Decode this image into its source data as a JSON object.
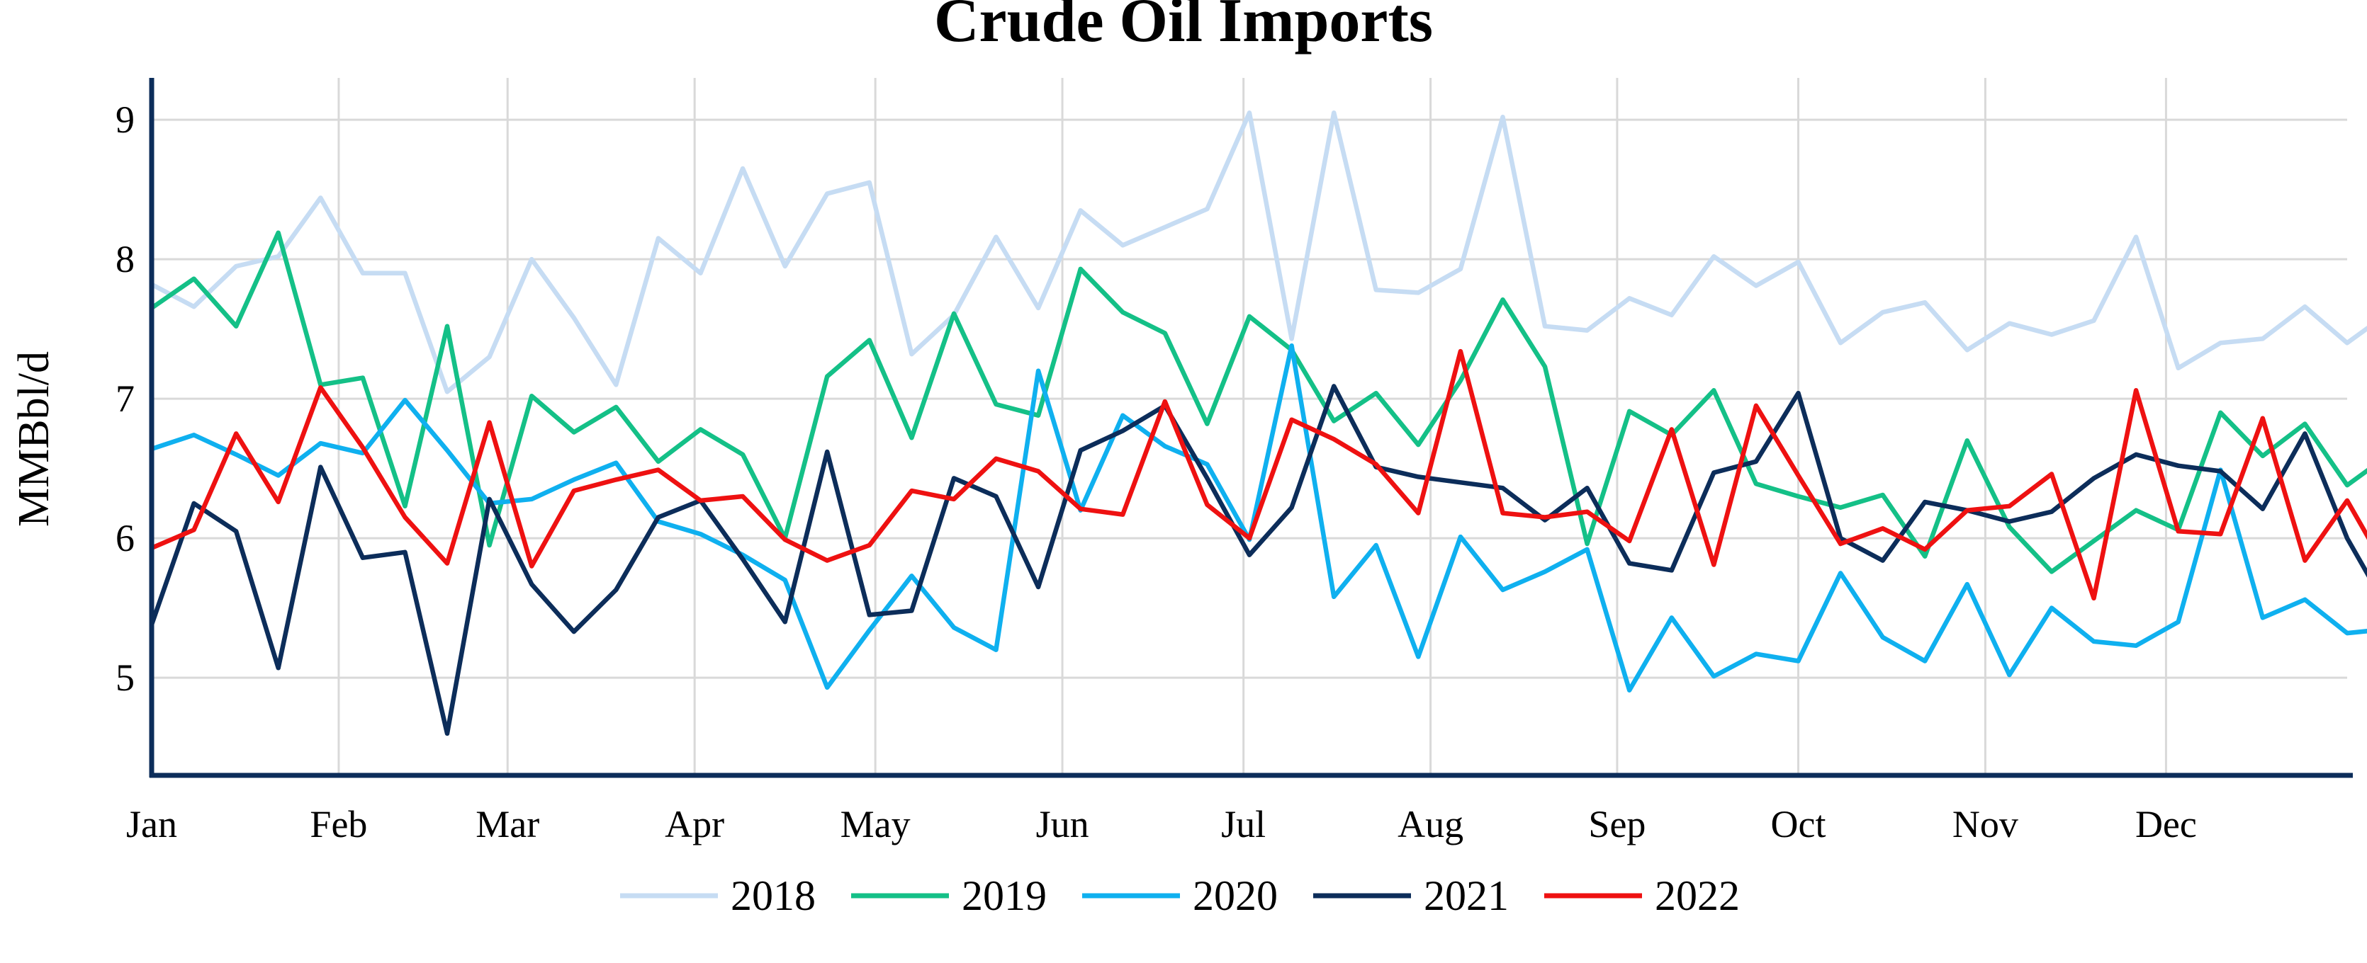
{
  "chart_data": {
    "type": "line",
    "title": "Crude Oil Imports",
    "xlabel": "",
    "ylabel": "MMBbl/d",
    "ylim": [
      4.3,
      9.3
    ],
    "yticks": [
      5,
      6,
      7,
      8,
      9
    ],
    "xlim": [
      1,
      53
    ],
    "x_tick_positions": [
      1,
      5.43,
      9.43,
      13.86,
      18.14,
      22.57,
      26.86,
      31.29,
      35.71,
      40,
      44.43,
      48.71
    ],
    "x_tick_labels": [
      "Jan",
      "Feb",
      "Mar",
      "Apr",
      "May",
      "Jun",
      "Jul",
      "Aug",
      "Sep",
      "Oct",
      "Nov",
      "Dec"
    ],
    "grid": true,
    "legend_position": "bottom-center",
    "colors": {
      "2018": "#c6dcf3",
      "2019": "#14c087",
      "2020": "#0fb0ef",
      "2021": "#0c2d5a",
      "2022": "#ee1111",
      "grid": "#d9d9d9",
      "axis": "#0c2d5a"
    },
    "series": [
      {
        "name": "2018",
        "values": [
          7.82,
          7.66,
          7.95,
          8.02,
          8.44,
          7.9,
          7.9,
          7.05,
          7.3,
          8.0,
          7.58,
          7.1,
          8.15,
          7.9,
          8.65,
          7.95,
          8.47,
          8.55,
          7.32,
          7.6,
          8.16,
          7.65,
          8.35,
          8.1,
          8.23,
          8.36,
          9.05,
          7.43,
          9.05,
          7.78,
          7.76,
          7.93,
          9.02,
          7.52,
          7.49,
          7.72,
          7.6,
          8.02,
          7.81,
          7.98,
          7.4,
          7.62,
          7.69,
          7.35,
          7.54,
          7.46,
          7.56,
          8.16,
          7.22,
          7.4,
          7.43,
          7.66,
          7.4,
          7.62
        ]
      },
      {
        "name": "2019",
        "values": [
          7.65,
          7.86,
          7.52,
          8.19,
          7.1,
          7.15,
          6.23,
          7.52,
          5.95,
          7.02,
          6.76,
          6.94,
          6.55,
          6.78,
          6.6,
          6.0,
          7.16,
          7.42,
          6.72,
          7.61,
          6.96,
          6.88,
          7.93,
          7.62,
          7.47,
          6.82,
          7.59,
          7.35,
          6.84,
          7.04,
          6.67,
          7.13,
          7.71,
          7.23,
          5.96,
          6.91,
          6.74,
          7.06,
          6.39,
          6.3,
          6.22,
          6.31,
          5.87,
          6.7,
          6.08,
          5.76,
          5.98,
          6.2,
          6.06,
          6.9,
          6.59,
          6.82,
          6.38,
          6.6
        ]
      },
      {
        "name": "2020",
        "values": [
          6.64,
          6.74,
          6.6,
          6.45,
          6.68,
          6.61,
          6.99,
          6.63,
          6.25,
          6.28,
          6.42,
          6.54,
          6.12,
          6.03,
          5.88,
          5.7,
          4.93,
          5.34,
          5.73,
          5.36,
          5.2,
          7.2,
          6.2,
          6.88,
          6.66,
          6.53,
          5.99,
          7.38,
          5.58,
          5.95,
          5.15,
          6.01,
          5.63,
          5.76,
          5.92,
          4.91,
          5.43,
          5.01,
          5.17,
          5.12,
          5.75,
          5.29,
          5.12,
          5.67,
          5.02,
          5.5,
          5.26,
          5.23,
          5.4,
          6.49,
          5.43,
          5.56,
          5.32,
          5.35
        ]
      },
      {
        "name": "2021",
        "values": [
          5.38,
          6.25,
          6.05,
          5.07,
          6.51,
          5.86,
          5.9,
          4.6,
          6.28,
          5.67,
          5.33,
          5.63,
          6.15,
          6.27,
          5.85,
          5.4,
          6.62,
          5.45,
          5.48,
          6.43,
          6.3,
          5.65,
          6.63,
          6.77,
          6.95,
          6.43,
          5.88,
          6.22,
          7.09,
          6.51,
          6.44,
          6.4,
          6.36,
          6.13,
          6.36,
          5.82,
          5.77,
          6.47,
          6.55,
          7.04,
          6.0,
          5.84,
          6.26,
          6.2,
          6.12,
          6.19,
          6.43,
          6.6,
          6.52,
          6.48,
          6.21,
          6.75,
          6.0,
          5.47
        ]
      },
      {
        "name": "2022",
        "values": [
          5.93,
          6.06,
          6.75,
          6.26,
          7.08,
          6.65,
          6.15,
          5.82,
          6.83,
          5.8,
          6.34,
          6.42,
          6.49,
          6.27,
          6.3,
          5.99,
          5.84,
          5.95,
          6.34,
          6.28,
          6.57,
          6.48,
          6.21,
          6.17,
          6.98,
          6.24,
          6.0,
          6.85,
          6.71,
          6.53,
          6.18,
          7.34,
          6.18,
          6.15,
          6.19,
          5.98,
          6.78,
          5.81,
          6.95,
          6.45,
          5.96,
          6.07,
          5.92,
          6.2,
          6.23,
          6.46,
          5.57,
          7.06,
          6.05,
          6.03,
          6.86,
          5.84,
          6.27,
          5.74
        ]
      }
    ]
  }
}
